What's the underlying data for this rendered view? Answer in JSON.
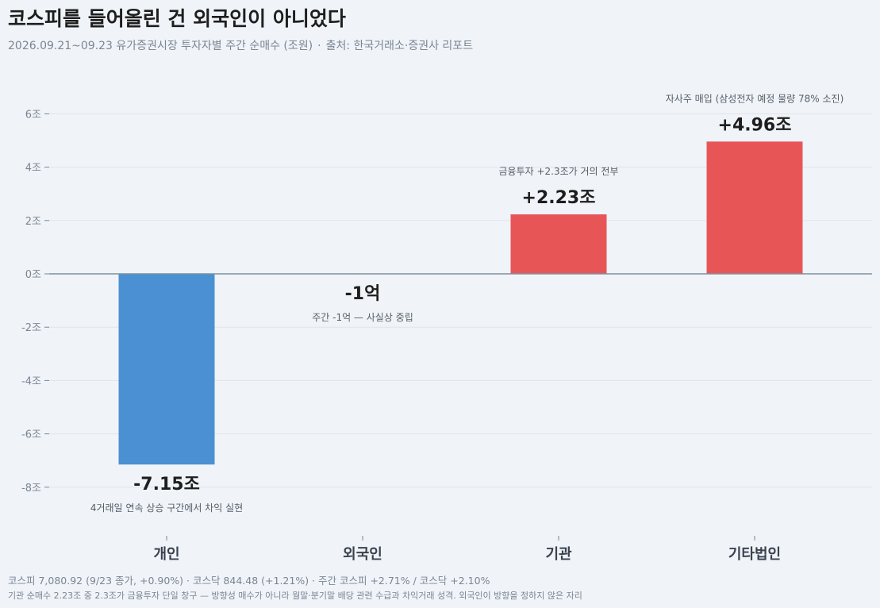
{
  "header": {
    "title": "코스피를 들어올린 건 외국인이 아니었다",
    "subtitle_period": "2026.09.21~09.23 유가증권시장 투자자별 주간 순매수 (조원)",
    "subtitle_source": "출처: 한국거래소·증권사 리포트"
  },
  "footer": {
    "line1": "코스피 7,080.92 (9/23 종가, +0.90%) · 코스닥 844.48 (+1.21%) · 주간 코스피 +2.71% / 코스닥 +2.10%",
    "line2": "기관 순매수 2.23조 중 2.3조가 금융투자 단일 창구 — 방향성 매수가 아니라 월말·분기말 배당 관련 수급과 차익거래 성격. 외국인이 방향을 정하지 않은 자리"
  },
  "colors": {
    "positive": "#e85557",
    "negative": "#4a90d2",
    "zero_line": "#7e8fa1",
    "grid": "#dfe5ec",
    "value_label": "#1e1e1e",
    "note": "#555d68",
    "tick": "#7a8594"
  },
  "chart_data": {
    "type": "bar",
    "unit": "조원",
    "categories": [
      "개인",
      "외국인",
      "기관",
      "기타법인"
    ],
    "values": [
      -7.15,
      -0.0001,
      2.23,
      4.96
    ],
    "value_labels": [
      "-7.15조",
      "-1억",
      "+2.23조",
      "+4.96조"
    ],
    "notes": [
      "4거래일 연속 상승 구간에서 차익 실현",
      "주간 -1억 — 사실상 중립",
      "금융투자 +2.3조가 거의 전부",
      "자사주 매입 (삼성전자 예정 물량 78% 소진)"
    ],
    "ylim": [
      -9,
      6.8
    ],
    "yticks": [
      -8,
      -6,
      -4,
      -2,
      0,
      2,
      4,
      6
    ],
    "ytick_labels": [
      "-8조",
      "-6조",
      "-4조",
      "-2조",
      "0조",
      "2조",
      "4조",
      "6조"
    ],
    "grid": true,
    "legend": "none"
  }
}
